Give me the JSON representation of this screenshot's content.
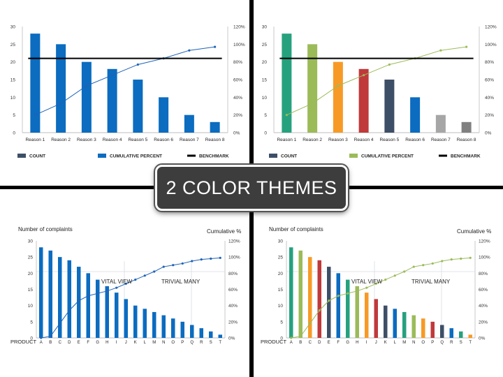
{
  "banner": {
    "title": "2 COLOR THEMES"
  },
  "chart_data": [
    {
      "type": "bar",
      "theme": "blue",
      "categories": [
        "Reason 1",
        "Reason 2",
        "Reason 3",
        "Reason 4",
        "Reason 5",
        "Reason 6",
        "Reason 7",
        "Reason 8"
      ],
      "series": [
        {
          "name": "COUNT",
          "type": "bar",
          "axis": "left",
          "values": [
            28,
            25,
            20,
            18,
            15,
            10,
            5,
            3
          ]
        },
        {
          "name": "CUMULATIVE PERCENT",
          "type": "line",
          "axis": "right",
          "values": [
            20,
            33,
            53,
            65,
            77,
            84,
            93,
            97
          ]
        },
        {
          "name": "BENCHMARK",
          "type": "line",
          "axis": "left",
          "values": [
            21,
            21,
            21,
            21,
            21,
            21,
            21,
            21
          ]
        }
      ],
      "left_ticks": [
        "0",
        "5",
        "10",
        "15",
        "20",
        "25",
        "30"
      ],
      "right_ticks": [
        "0%",
        "20%",
        "40%",
        "60%",
        "80%",
        "100%",
        "120%"
      ],
      "ylim": [
        0,
        30
      ],
      "y2lim": [
        0,
        120
      ],
      "legend": [
        "COUNT",
        "CUMULATIVE PERCENT",
        "BENCHMARK"
      ],
      "legend_position": "bottom",
      "colors": {
        "bars": [
          "#0b6cc0"
        ],
        "line": "#1e63b8",
        "benchmark": "#000000",
        "count_swatch": "#3d4f66"
      }
    },
    {
      "type": "bar",
      "theme": "multicolor",
      "categories": [
        "Reason 1",
        "Reason 2",
        "Reason 3",
        "Reason 4",
        "Reason 5",
        "Reason 6",
        "Reason 7",
        "Reason 8"
      ],
      "series": [
        {
          "name": "COUNT",
          "type": "bar",
          "axis": "left",
          "values": [
            28,
            25,
            20,
            18,
            15,
            10,
            5,
            3
          ]
        },
        {
          "name": "CUMULATIVE PERCENT",
          "type": "line",
          "axis": "right",
          "values": [
            20,
            33,
            53,
            65,
            77,
            84,
            93,
            97
          ]
        },
        {
          "name": "BENCHMARK",
          "type": "line",
          "axis": "left",
          "values": [
            21,
            21,
            21,
            21,
            21,
            21,
            21,
            21
          ]
        }
      ],
      "left_ticks": [
        "0",
        "5",
        "10",
        "15",
        "20",
        "25",
        "30"
      ],
      "right_ticks": [
        "0%",
        "20%",
        "40%",
        "60%",
        "80%",
        "100%",
        "120%"
      ],
      "ylim": [
        0,
        30
      ],
      "y2lim": [
        0,
        120
      ],
      "legend": [
        "COUNT",
        "CUMULATIVE PERCENT",
        "BENCHMARK"
      ],
      "legend_position": "bottom",
      "colors": {
        "bars": [
          "#26a17e",
          "#9bbb59",
          "#f79a25",
          "#c0393b",
          "#3d4f66",
          "#0b6cc0",
          "#a6a6a6",
          "#808080"
        ],
        "line": "#9bbb59",
        "benchmark": "#000000",
        "count_swatch": "#3d4f66"
      }
    },
    {
      "type": "bar",
      "theme": "blue",
      "xlabel": "PRODUCT",
      "ylabel": "Number of complaints",
      "y2label": "Cumulative %",
      "categories": [
        "A",
        "B",
        "C",
        "D",
        "E",
        "F",
        "G",
        "H",
        "I",
        "J",
        "K",
        "L",
        "M",
        "N",
        "O",
        "P",
        "Q",
        "R",
        "S",
        "T"
      ],
      "series": [
        {
          "name": "Number of complaints",
          "type": "bar",
          "axis": "left",
          "values": [
            28,
            27,
            25,
            24,
            22,
            20,
            18,
            16,
            14,
            12,
            10,
            9,
            8,
            7,
            6,
            5,
            4,
            3,
            2,
            1
          ]
        },
        {
          "name": "Cumulative %",
          "type": "line",
          "axis": "right",
          "values": [
            0,
            2,
            18,
            34,
            46,
            52,
            55,
            58,
            62,
            67,
            72,
            77,
            82,
            88,
            90,
            92,
            95,
            97,
            98,
            99
          ]
        }
      ],
      "left_ticks": [
        "0",
        "5",
        "10",
        "15",
        "20",
        "25",
        "30"
      ],
      "right_ticks": [
        "0%",
        "20%",
        "40%",
        "60%",
        "80%",
        "100%",
        "120%"
      ],
      "ylim": [
        0,
        30
      ],
      "y2lim": [
        0,
        120
      ],
      "annotations": [
        "VITAL VIEW",
        "TRIVIAL MANY"
      ],
      "colors": {
        "bars": [
          "#0b6cc0"
        ],
        "line": "#1e63b8"
      }
    },
    {
      "type": "bar",
      "theme": "multicolor",
      "xlabel": "PRODUCT",
      "ylabel": "Number of complaints",
      "y2label": "Cumulative %",
      "categories": [
        "A",
        "B",
        "C",
        "D",
        "E",
        "F",
        "G",
        "H",
        "I",
        "J",
        "K",
        "L",
        "M",
        "N",
        "O",
        "P",
        "Q",
        "R",
        "S",
        "T"
      ],
      "series": [
        {
          "name": "Number of complaints",
          "type": "bar",
          "axis": "left",
          "values": [
            28,
            27,
            25,
            24,
            22,
            20,
            18,
            16,
            14,
            12,
            10,
            9,
            8,
            7,
            6,
            5,
            4,
            3,
            2,
            1
          ]
        },
        {
          "name": "Cumulative %",
          "type": "line",
          "axis": "right",
          "values": [
            0,
            2,
            18,
            34,
            46,
            52,
            55,
            58,
            62,
            67,
            72,
            77,
            82,
            88,
            90,
            92,
            95,
            97,
            98,
            99
          ]
        }
      ],
      "left_ticks": [
        "0",
        "5",
        "10",
        "15",
        "20",
        "25",
        "30"
      ],
      "right_ticks": [
        "0%",
        "20%",
        "40%",
        "60%",
        "80%",
        "100%",
        "120%"
      ],
      "ylim": [
        0,
        30
      ],
      "y2lim": [
        0,
        120
      ],
      "annotations": [
        "VITAL VIEW",
        "TRIVIAL MANY"
      ],
      "colors": {
        "bars": [
          "#26a17e",
          "#9bbb59",
          "#f79a25",
          "#c0393b",
          "#3d4f66",
          "#0b6cc0",
          "#26a17e",
          "#9bbb59",
          "#f79a25",
          "#c0393b",
          "#3d4f66",
          "#0b6cc0",
          "#26a17e",
          "#9bbb59",
          "#f79a25",
          "#c0393b",
          "#3d4f66",
          "#0b6cc0",
          "#26a17e",
          "#f79a25"
        ],
        "line": "#9bbb59"
      }
    }
  ]
}
